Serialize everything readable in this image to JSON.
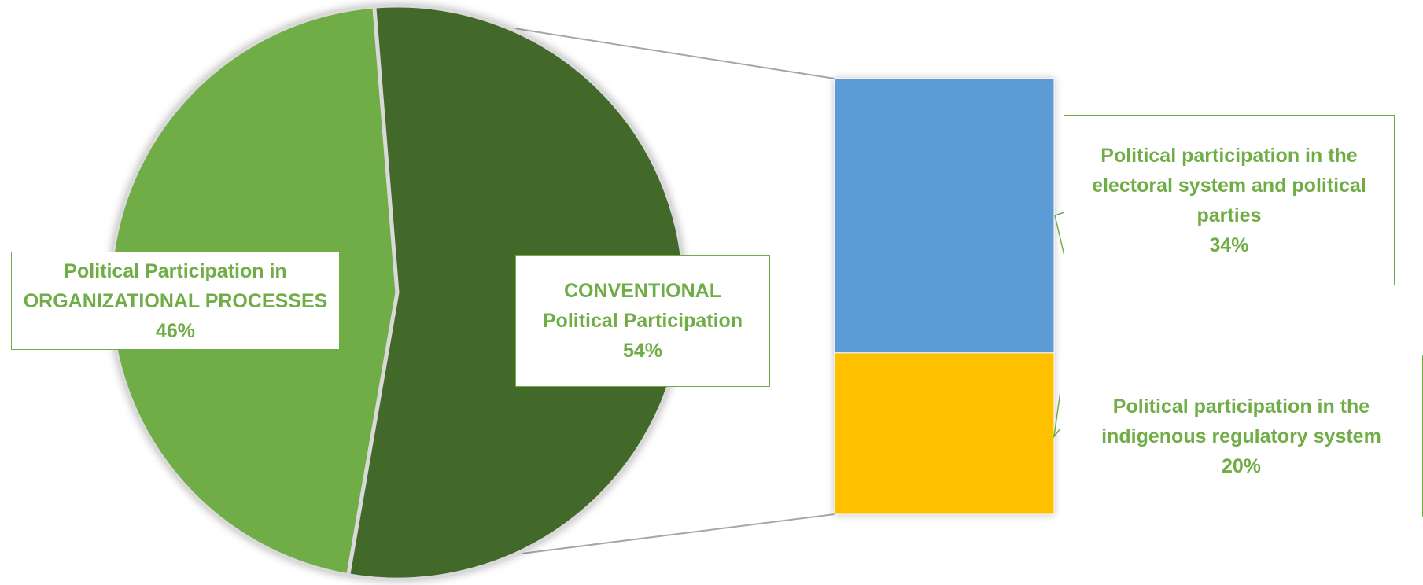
{
  "colors": {
    "organizational": "#70ad47",
    "conventional": "#43682b",
    "electoral": "#5b9bd5",
    "indigenous": "#ffc000",
    "label_text": "#70ad47",
    "connector": "#a6a6a6"
  },
  "chart_data": {
    "type": "bar-of-pie",
    "title": "",
    "pie": [
      {
        "name_line1": "Political Participation in",
        "name_line2": "ORGANIZATIONAL PROCESSES",
        "value": 46,
        "value_label": "46%"
      },
      {
        "name_line1": "CONVENTIONAL",
        "name_line2": "Political Participation",
        "value": 54,
        "value_label": "54%"
      }
    ],
    "bar": [
      {
        "name_line1": "Political participation in the",
        "name_line2": "electoral system and political",
        "name_line3": "parties",
        "value": 34,
        "value_label": "34%"
      },
      {
        "name_line1": "Political participation in the",
        "name_line2": "indigenous regulatory system",
        "value": 20,
        "value_label": "20%"
      }
    ]
  }
}
